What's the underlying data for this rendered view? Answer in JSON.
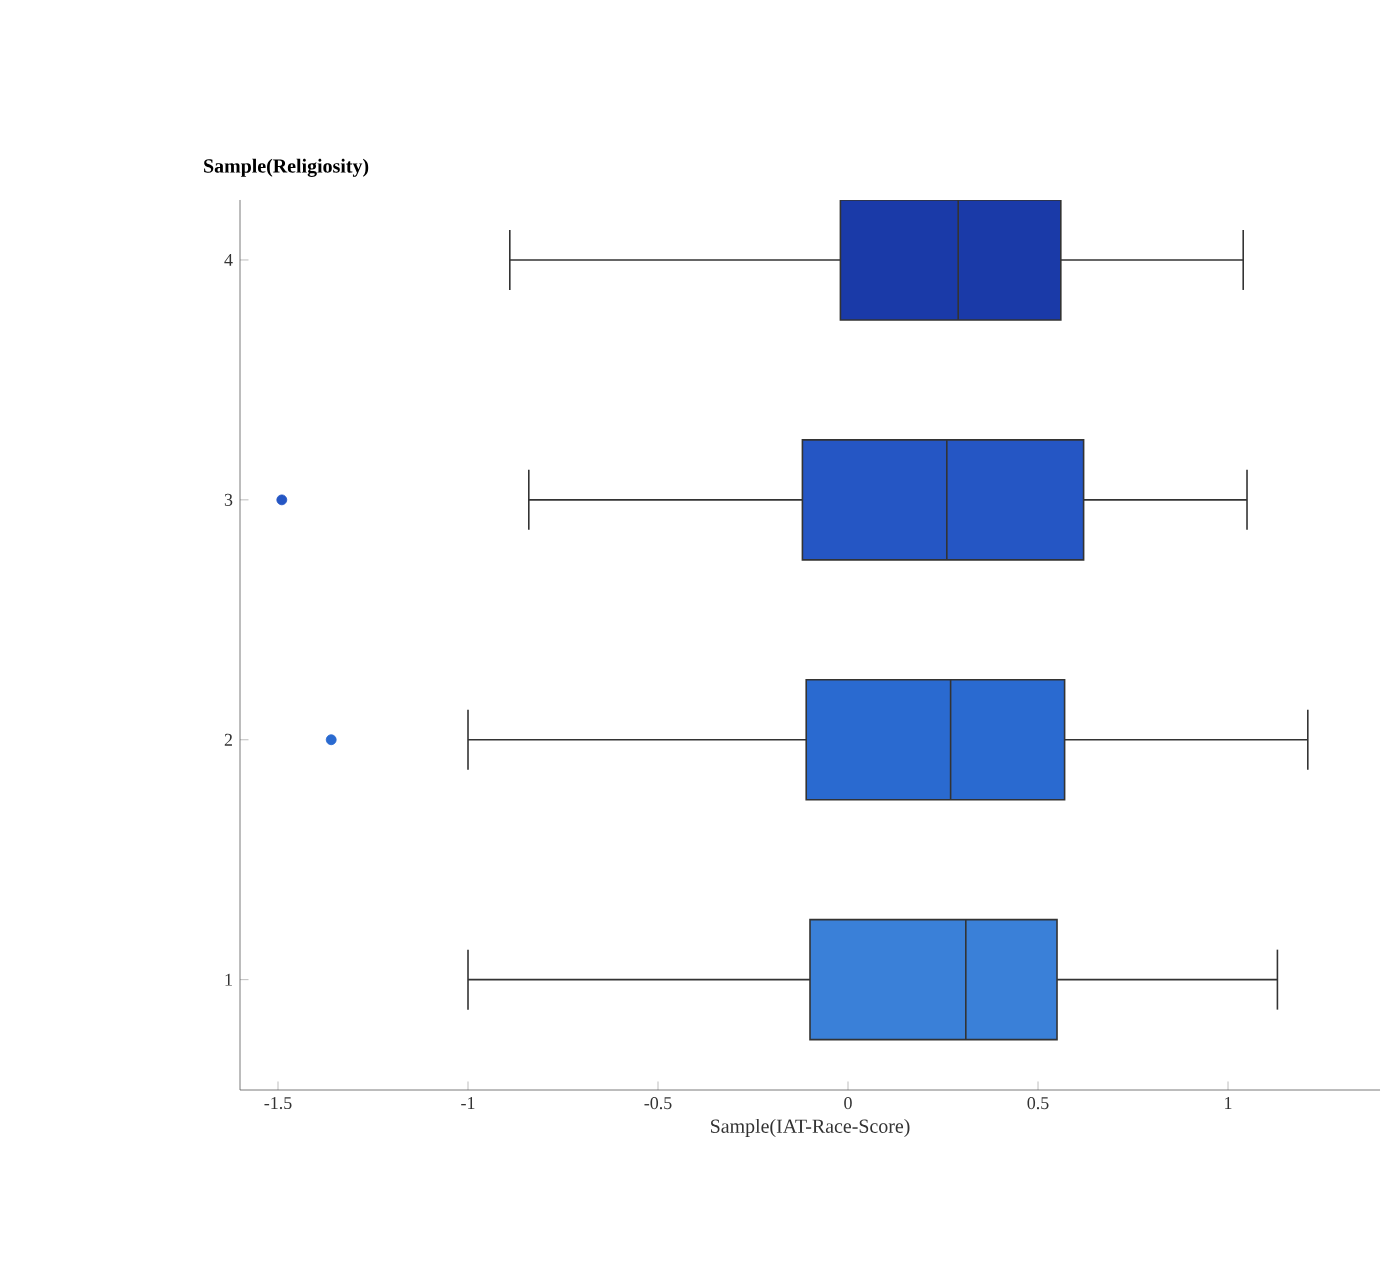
{
  "chart_data": {
    "type": "box",
    "orientation": "horizontal",
    "xlabel": "Sample(IAT-Race-Score)",
    "ylabel": "Sample(Religiosity)",
    "categories": [
      "4",
      "3",
      "2",
      "1"
    ],
    "boxes": [
      {
        "low": -0.89,
        "q1": -0.02,
        "median": 0.29,
        "q3": 0.56,
        "high": 1.04
      },
      {
        "low": -0.84,
        "q1": -0.12,
        "median": 0.26,
        "q3": 0.62,
        "high": 1.05,
        "outliers": [
          -1.49
        ]
      },
      {
        "low": -1.0,
        "q1": -0.11,
        "median": 0.27,
        "q3": 0.57,
        "high": 1.21,
        "outliers": [
          -1.36
        ]
      },
      {
        "low": -1.0,
        "q1": -0.1,
        "median": 0.31,
        "q3": 0.55,
        "high": 1.13
      }
    ],
    "colors": [
      "#1a3aa8",
      "#2556c4",
      "#2a6ad0",
      "#3a80d8"
    ],
    "xlim": [
      -1.6,
      1.4
    ],
    "xticks": [
      -1.5,
      -1,
      -0.5,
      0,
      0.5,
      1
    ],
    "grid": false
  }
}
